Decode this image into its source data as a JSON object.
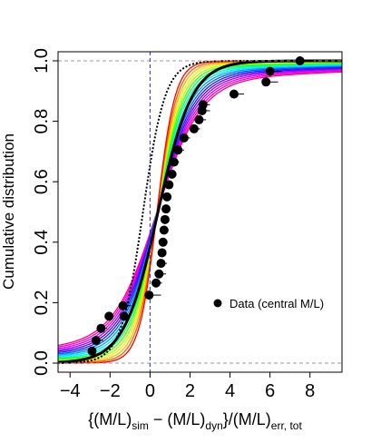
{
  "chart_data": {
    "type": "line",
    "title": "",
    "xlabel": {
      "lead": "{(M/L)",
      "sub1": "sim",
      "mid": " − (M/L)",
      "sub2": "dyn",
      "tail": "}/(M/L)",
      "sub3": "err, tot"
    },
    "ylabel": "Cumulative distribution",
    "xlim": [
      -4.6,
      9.6
    ],
    "ylim": [
      -0.03,
      1.03
    ],
    "x_ticks": [
      -4,
      -2,
      0,
      2,
      4,
      6,
      8
    ],
    "x_tick_labels": [
      "−4",
      "−2",
      "0",
      "2",
      "4",
      "6",
      "8"
    ],
    "y_ticks": [
      0.0,
      0.2,
      0.4,
      0.6,
      0.8,
      1.0
    ],
    "y_tick_labels": [
      "0.0",
      "0.2",
      "0.4",
      "0.6",
      "0.8",
      "1.0"
    ],
    "reference_lines": {
      "horizontal": [
        0,
        1
      ],
      "vertical": [
        0
      ]
    },
    "legend": {
      "position": "bottom-right",
      "label": "Data (central M/L)"
    },
    "model_curves": {
      "count": 17,
      "colors": [
        "#ff0000",
        "#ff5a00",
        "#ffb400",
        "#e8f000",
        "#a0ff00",
        "#40ff00",
        "#00ff60",
        "#00ffc0",
        "#00e8ff",
        "#00a0ff",
        "#0060ff",
        "#2020ff",
        "#6000ff",
        "#a000ff",
        "#e000ff",
        "#ff00c0",
        "#ff0080"
      ],
      "center": 0.35,
      "scale_start": 0.45,
      "scale_end": 1.1,
      "tail_weight_end": 0.13,
      "tail_scale": 1.5
    },
    "black_solid_curve": {
      "center": 0.4,
      "scale": 0.85
    },
    "black_dotted_curve": {
      "center": -0.35,
      "scale": 0.55
    },
    "data_points": [
      {
        "x": -2.9,
        "y": 0.04,
        "xerr": 0.15
      },
      {
        "x": -2.7,
        "y": 0.075,
        "xerr": 0.35
      },
      {
        "x": -2.45,
        "y": 0.115,
        "xerr": 0.3
      },
      {
        "x": -2.05,
        "y": 0.155,
        "xerr": 0.2
      },
      {
        "x": -1.35,
        "y": 0.19,
        "xerr": 0.4
      },
      {
        "x": -1.3,
        "y": 0.155,
        "xerr": 0.3
      },
      {
        "x": -0.05,
        "y": 0.225,
        "xerr": 0.6
      },
      {
        "x": 0.3,
        "y": 0.265,
        "xerr": 0.3
      },
      {
        "x": 0.45,
        "y": 0.295,
        "xerr": 0.35
      },
      {
        "x": 0.55,
        "y": 0.33,
        "xerr": 0.3
      },
      {
        "x": 0.6,
        "y": 0.365,
        "xerr": 0.2
      },
      {
        "x": 0.65,
        "y": 0.4,
        "xerr": 0.2
      },
      {
        "x": 0.7,
        "y": 0.44,
        "xerr": 0.15
      },
      {
        "x": 0.75,
        "y": 0.475,
        "xerr": 0.15
      },
      {
        "x": 0.8,
        "y": 0.51,
        "xerr": 0.15
      },
      {
        "x": 0.85,
        "y": 0.55,
        "xerr": 0.15
      },
      {
        "x": 0.95,
        "y": 0.59,
        "xerr": 0.2
      },
      {
        "x": 1.1,
        "y": 0.625,
        "xerr": 0.2
      },
      {
        "x": 1.2,
        "y": 0.665,
        "xerr": 0.25
      },
      {
        "x": 1.4,
        "y": 0.705,
        "xerr": 0.3
      },
      {
        "x": 1.7,
        "y": 0.745,
        "xerr": 0.3
      },
      {
        "x": 2.2,
        "y": 0.775,
        "xerr": 0.3
      },
      {
        "x": 2.45,
        "y": 0.805,
        "xerr": 0.35
      },
      {
        "x": 2.6,
        "y": 0.835,
        "xerr": 0.4
      },
      {
        "x": 2.65,
        "y": 0.855,
        "xerr": 0.35
      },
      {
        "x": 4.2,
        "y": 0.89,
        "xerr": 0.5
      },
      {
        "x": 5.8,
        "y": 0.93,
        "xerr": 0.6
      },
      {
        "x": 6.0,
        "y": 0.965,
        "xerr": 0.6
      },
      {
        "x": 7.5,
        "y": 1.0,
        "xerr": 0.7
      }
    ]
  }
}
